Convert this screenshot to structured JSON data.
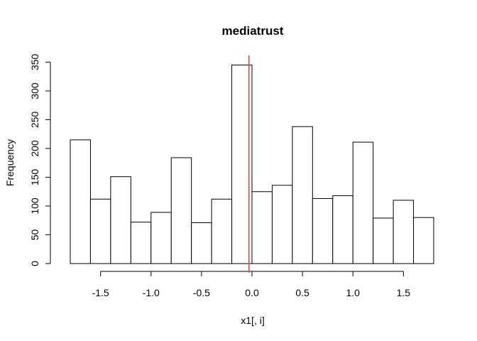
{
  "chart_data": {
    "type": "bar",
    "title": "mediatrust",
    "xlabel": "x1[, i]",
    "ylabel": "Frequency",
    "bins": [
      {
        "from": -1.8,
        "to": -1.6,
        "count": 215
      },
      {
        "from": -1.6,
        "to": -1.4,
        "count": 112
      },
      {
        "from": -1.4,
        "to": -1.2,
        "count": 151
      },
      {
        "from": -1.2,
        "to": -1.0,
        "count": 72
      },
      {
        "from": -1.0,
        "to": -0.8,
        "count": 89
      },
      {
        "from": -0.8,
        "to": -0.6,
        "count": 184
      },
      {
        "from": -0.6,
        "to": -0.4,
        "count": 71
      },
      {
        "from": -0.4,
        "to": -0.2,
        "count": 112
      },
      {
        "from": -0.2,
        "to": 0.0,
        "count": 345
      },
      {
        "from": 0.0,
        "to": 0.2,
        "count": 125
      },
      {
        "from": 0.2,
        "to": 0.4,
        "count": 136
      },
      {
        "from": 0.4,
        "to": 0.6,
        "count": 238
      },
      {
        "from": 0.6,
        "to": 0.8,
        "count": 113
      },
      {
        "from": 0.8,
        "to": 1.0,
        "count": 118
      },
      {
        "from": 1.0,
        "to": 1.2,
        "count": 211
      },
      {
        "from": 1.2,
        "to": 1.4,
        "count": 79
      },
      {
        "from": 1.4,
        "to": 1.6,
        "count": 110
      },
      {
        "from": 1.6,
        "to": 1.8,
        "count": 80
      }
    ],
    "xlim": [
      -1.8,
      1.8
    ],
    "ylim": [
      0,
      350
    ],
    "x_ticks": [
      -1.5,
      -1.0,
      -0.5,
      0.0,
      0.5,
      1.0,
      1.5
    ],
    "x_tick_labels": [
      "-1.5",
      "-1.0",
      "-0.5",
      "0.0",
      "0.5",
      "1.0",
      "1.5"
    ],
    "y_ticks": [
      0,
      50,
      100,
      150,
      200,
      250,
      300,
      350
    ],
    "y_tick_labels": [
      "0",
      "50",
      "100",
      "150",
      "200",
      "250",
      "300",
      "350"
    ],
    "reference_line": {
      "x": -0.03,
      "color": "#e8423c"
    },
    "bar_fill": "#ffffff",
    "bar_stroke": "#000000",
    "grid": false
  }
}
